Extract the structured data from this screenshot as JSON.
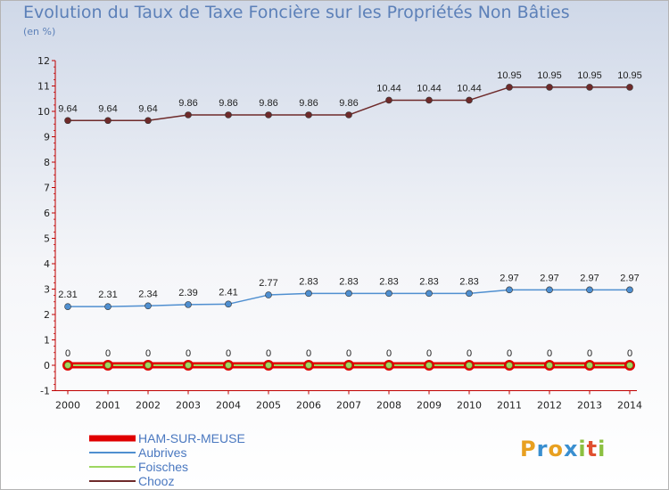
{
  "header": {
    "title": "Evolution du Taux de Taxe Foncière sur les Propriétés Non Bâties",
    "unit": "(en %)"
  },
  "brand": {
    "letters": [
      "P",
      "r",
      "o",
      "x",
      "i",
      "t",
      "i"
    ],
    "colors": [
      "#e8a020",
      "#3a8fd0",
      "#e8a020",
      "#3a8fd0",
      "#8cc040",
      "#e05030",
      "#8cc040"
    ]
  },
  "chart_data": {
    "type": "line",
    "title": "Evolution du Taux de Taxe Foncière sur les Propriétés Non Bâties",
    "ylabel": "(en %)",
    "xlabel": "",
    "x": [
      "2000",
      "2001",
      "2002",
      "2003",
      "2004",
      "2005",
      "2006",
      "2007",
      "2008",
      "2009",
      "2010",
      "2011",
      "2012",
      "2013",
      "2014"
    ],
    "ylim": [
      -1,
      12
    ],
    "yticks": [
      "-1",
      "0",
      "1",
      "2",
      "3",
      "4",
      "5",
      "6",
      "7",
      "8",
      "9",
      "10",
      "11",
      "12"
    ],
    "grid": false,
    "legend": "bottom-left",
    "series": [
      {
        "name": "HAM-SUR-MEUSE",
        "color": "#e00000",
        "values": [
          0,
          0,
          0,
          0,
          0,
          0,
          0,
          0,
          0,
          0,
          0,
          0,
          0,
          0,
          0
        ],
        "labels": [
          "0",
          "0",
          "0",
          "0",
          "0",
          "0",
          "0",
          "0",
          "0",
          "0",
          "0",
          "0",
          "0",
          "0",
          "0"
        ]
      },
      {
        "name": "Aubrives",
        "color": "#4f8fd0",
        "values": [
          2.31,
          2.31,
          2.34,
          2.39,
          2.41,
          2.77,
          2.83,
          2.83,
          2.83,
          2.83,
          2.83,
          2.97,
          2.97,
          2.97,
          2.97
        ],
        "labels": [
          "2.31",
          "2.31",
          "2.34",
          "2.39",
          "2.41",
          "2.77",
          "2.83",
          "2.83",
          "2.83",
          "2.83",
          "2.83",
          "2.97",
          "2.97",
          "2.97",
          "2.97"
        ]
      },
      {
        "name": "Foisches",
        "color": "#9ed660",
        "values": [
          0,
          0,
          0,
          0,
          0,
          0,
          0,
          0,
          0,
          0,
          0,
          0,
          0,
          0,
          0
        ],
        "labels": []
      },
      {
        "name": "Chooz",
        "color": "#6e2a2a",
        "values": [
          9.64,
          9.64,
          9.64,
          9.86,
          9.86,
          9.86,
          9.86,
          9.86,
          10.44,
          10.44,
          10.44,
          10.95,
          10.95,
          10.95,
          10.95
        ],
        "labels": [
          "9.64",
          "9.64",
          "9.64",
          "9.86",
          "9.86",
          "9.86",
          "9.86",
          "9.86",
          "10.44",
          "10.44",
          "10.44",
          "10.95",
          "10.95",
          "10.95",
          "10.95"
        ]
      }
    ]
  }
}
